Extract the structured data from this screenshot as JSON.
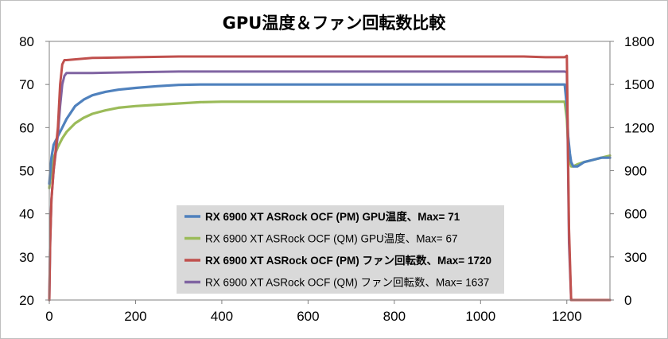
{
  "chart_data": {
    "type": "line",
    "title": "GPU温度＆ファン回転数比較",
    "x_ticks": [
      "0",
      "200",
      "400",
      "600",
      "800",
      "1000",
      "1200"
    ],
    "y_left_ticks": [
      "20",
      "30",
      "40",
      "50",
      "60",
      "70",
      "80"
    ],
    "y_right_ticks": [
      "0",
      "300",
      "600",
      "900",
      "1200",
      "1500",
      "1800"
    ],
    "xlim": [
      0,
      1300
    ],
    "ylim_left": [
      20,
      80
    ],
    "ylim_right": [
      0,
      1800
    ],
    "grid": false,
    "legend_position": "center-bottom, inside plot",
    "series": [
      {
        "name": "RX 6900 XT ASRock OCF (PM) GPU温度、Max= 71",
        "axis": "left",
        "color": "#4f81bd",
        "bold": true,
        "x": [
          0,
          5,
          10,
          20,
          30,
          40,
          60,
          80,
          100,
          130,
          160,
          200,
          250,
          300,
          350,
          400,
          500,
          600,
          700,
          800,
          900,
          1000,
          1100,
          1150,
          1195,
          1200,
          1203,
          1207,
          1210,
          1215,
          1225,
          1240,
          1260,
          1280,
          1300
        ],
        "y": [
          47,
          53,
          56,
          58,
          60,
          62,
          65,
          66.5,
          67.5,
          68.3,
          68.8,
          69.2,
          69.6,
          69.9,
          70,
          70,
          70,
          70,
          70,
          70,
          70,
          70,
          70,
          70,
          70,
          65,
          58,
          54,
          52,
          51,
          51,
          52,
          52.5,
          53,
          53
        ]
      },
      {
        "name": "RX 6900 XT ASRock OCF (QM) GPU温度、Max= 67",
        "axis": "left",
        "color": "#9bbb59",
        "bold": false,
        "x": [
          0,
          5,
          10,
          20,
          30,
          40,
          60,
          80,
          100,
          130,
          160,
          200,
          250,
          300,
          350,
          400,
          500,
          600,
          700,
          800,
          900,
          1000,
          1100,
          1150,
          1195,
          1200,
          1203,
          1207,
          1210,
          1215,
          1225,
          1240,
          1260,
          1280,
          1300
        ],
        "y": [
          46,
          50,
          53,
          55.5,
          57.5,
          59,
          61,
          62.3,
          63.2,
          64,
          64.6,
          65,
          65.3,
          65.6,
          65.9,
          66,
          66,
          66,
          66,
          66,
          66,
          66,
          66,
          66,
          66,
          62,
          56,
          52.5,
          51,
          51,
          51.5,
          52,
          52.5,
          53,
          53.5
        ]
      },
      {
        "name": "RX 6900 XT ASRock OCF (PM) ファン回転数、Max= 1720",
        "axis": "right",
        "color": "#c0504d",
        "bold": true,
        "x": [
          0,
          2,
          5,
          10,
          20,
          25,
          30,
          35,
          40,
          100,
          200,
          300,
          400,
          500,
          600,
          700,
          800,
          900,
          1000,
          1100,
          1150,
          1195,
          1200,
          1205,
          1210,
          1300
        ],
        "y": [
          0,
          400,
          700,
          900,
          1200,
          1500,
          1640,
          1670,
          1670,
          1685,
          1690,
          1695,
          1695,
          1695,
          1695,
          1695,
          1695,
          1695,
          1695,
          1695,
          1690,
          1690,
          1700,
          500,
          0,
          0
        ]
      },
      {
        "name": "RX 6900 XT ASRock OCF (QM) ファン回転数、Max= 1637",
        "axis": "right",
        "color": "#8064a2",
        "bold": false,
        "x": [
          0,
          2,
          5,
          10,
          20,
          25,
          30,
          35,
          40,
          100,
          200,
          300,
          400,
          500,
          600,
          700,
          800,
          900,
          1000,
          1100,
          1150,
          1195,
          1200,
          1205,
          1210,
          1300
        ],
        "y": [
          0,
          400,
          700,
          900,
          1150,
          1350,
          1500,
          1560,
          1580,
          1580,
          1585,
          1590,
          1590,
          1590,
          1590,
          1590,
          1590,
          1590,
          1590,
          1590,
          1590,
          1590,
          1585,
          400,
          0,
          0
        ]
      }
    ]
  }
}
